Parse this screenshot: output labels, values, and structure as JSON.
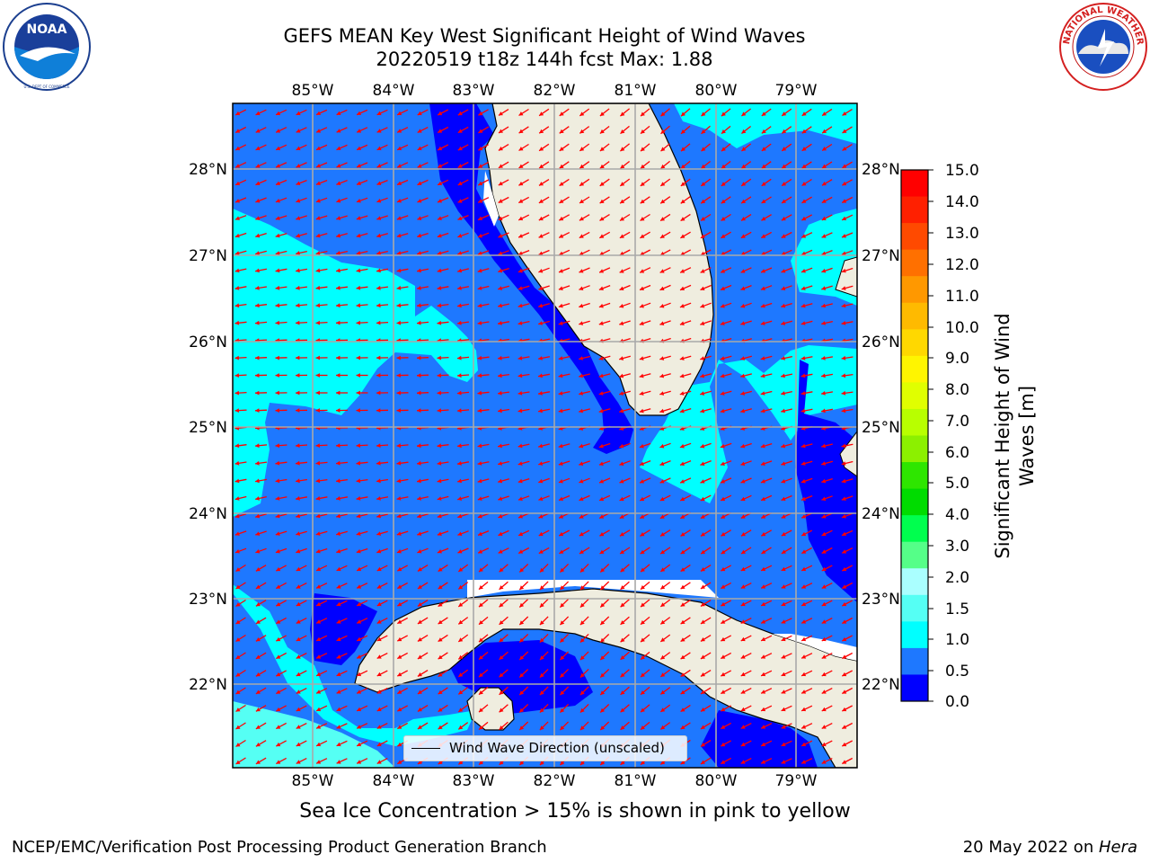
{
  "header": {
    "title_line1": "GEFS MEAN Key West Significant Height of Wind Waves",
    "title_line2": "20220519 t18z 144h fcst   Max: 1.88"
  },
  "logos": {
    "left": "NOAA",
    "left_ring_text": "NATIONAL OCEANIC AND ATMOSPHERIC ADMINISTRATION · U.S. DEPARTMENT OF COMMERCE",
    "right_ring_text": "NATIONAL WEATHER SERVICE"
  },
  "map": {
    "lon_labels": [
      "85°W",
      "84°W",
      "83°W",
      "82°W",
      "81°W",
      "80°W",
      "79°W"
    ],
    "lat_labels": [
      "28°N",
      "27°N",
      "26°N",
      "25°N",
      "24°N",
      "23°N",
      "22°N"
    ],
    "legend_label": "Wind Wave Direction (unscaled)",
    "colors": {
      "land": "#efeddf",
      "level_0_0.5": "#0000ff",
      "level_0.5_1.0": "#1e78ff",
      "level_1.0_1.5": "#00ffff",
      "level_1.5_2.0": "#55fff4",
      "arrow": "#ff0000"
    }
  },
  "colorbar": {
    "label": "Significant Height of Wind Waves [m]",
    "label_line1": "Significant Height of Wind",
    "label_line2": "Waves [m]",
    "ticks": [
      "15.0",
      "14.0",
      "13.0",
      "12.0",
      "11.0",
      "10.0",
      "9.0",
      "8.0",
      "7.0",
      "6.0",
      "5.0",
      "4.0",
      "3.0",
      "2.0",
      "1.5",
      "1.0",
      "0.5",
      "0.0"
    ],
    "colors": [
      "#ff0000",
      "#ff2000",
      "#ff4a00",
      "#ff7000",
      "#ff9800",
      "#ffba00",
      "#ffd800",
      "#fff500",
      "#e0ff00",
      "#b8ff00",
      "#8cf000",
      "#2ee600",
      "#00dc00",
      "#00ff4e",
      "#55ff88",
      "#aaffff",
      "#55fff4",
      "#00ffff",
      "#1e78ff",
      "#0000ff"
    ]
  },
  "footer": {
    "note": "Sea Ice Concentration > 15% is shown in pink to yellow",
    "left": "NCEP/EMC/Verification Post Processing Product Generation Branch",
    "right_date": "20 May 2022 on ",
    "right_host": "Hera"
  }
}
